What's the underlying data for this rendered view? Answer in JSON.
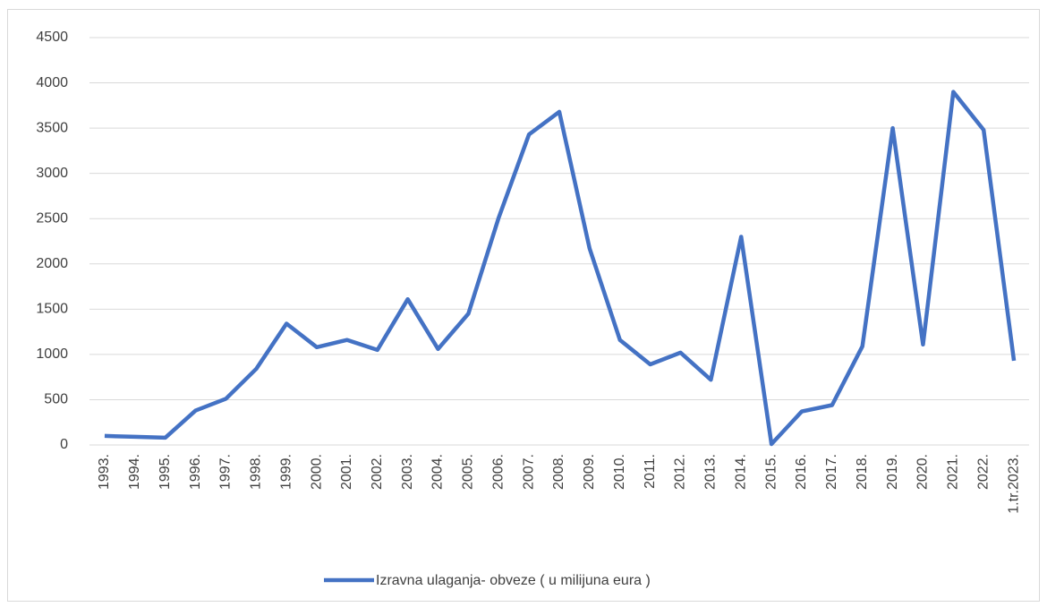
{
  "chart_data": {
    "type": "line",
    "categories": [
      "1993.",
      "1994.",
      "1995.",
      "1996.",
      "1997.",
      "1998.",
      "1999.",
      "2000.",
      "2001.",
      "2002.",
      "2003.",
      "2004.",
      "2005.",
      "2006.",
      "2007.",
      "2008.",
      "2009.",
      "2010.",
      "2011.",
      "2012.",
      "2013.",
      "2014.",
      "2015.",
      "2016.",
      "2017.",
      "2018.",
      "2019.",
      "2020.",
      "2021.",
      "2022.",
      "1.tr.2023."
    ],
    "series": [
      {
        "name": "Izravna ulaganja- obveze ( u milijuna eura )",
        "color": "#4472c4",
        "values": [
          100,
          90,
          80,
          380,
          510,
          840,
          1340,
          1080,
          1160,
          1050,
          1610,
          1060,
          1450,
          2510,
          3430,
          3680,
          2170,
          1160,
          890,
          1020,
          720,
          2300,
          10,
          370,
          440,
          1090,
          3500,
          1110,
          3900,
          3480,
          930
        ]
      }
    ],
    "ylim": [
      0,
      4500
    ],
    "yticks": [
      0,
      500,
      1000,
      1500,
      2000,
      2500,
      3000,
      3500,
      4000,
      4500
    ],
    "grid": true,
    "legend": "bottom"
  }
}
